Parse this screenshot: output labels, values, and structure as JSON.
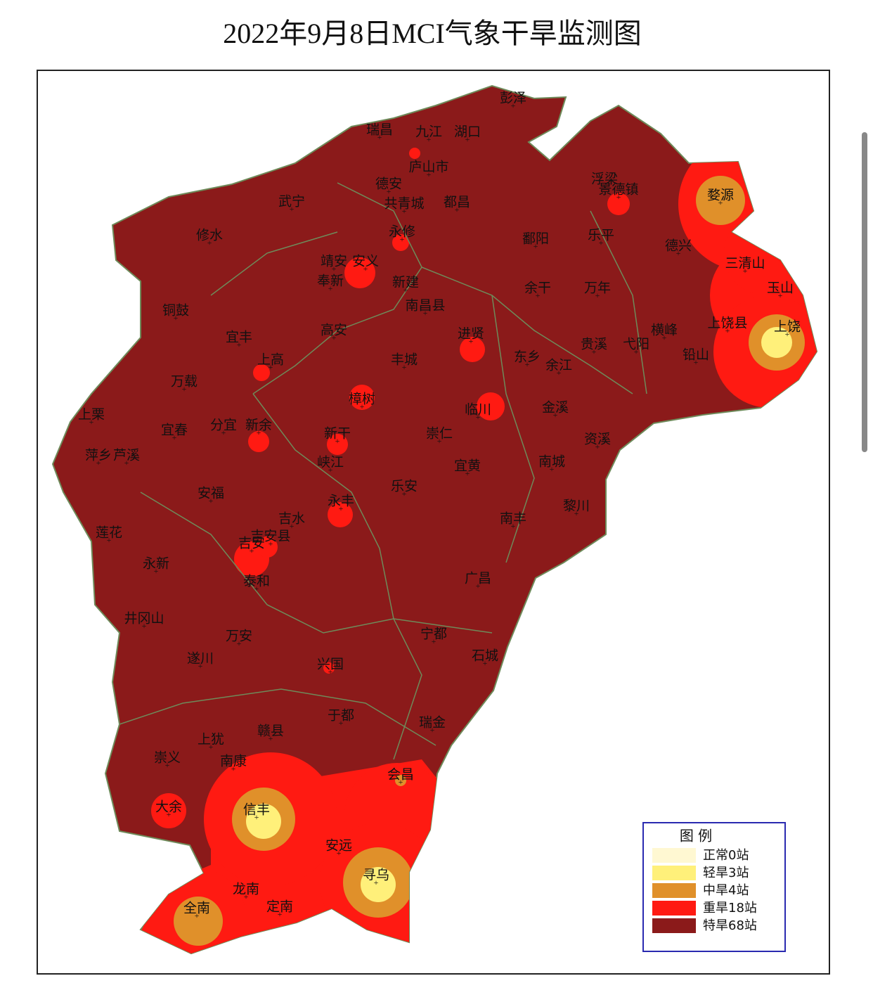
{
  "title": "2022年9月8日MCI气象干旱监测图",
  "legend": {
    "title": "图  例",
    "items": [
      {
        "label": "正常0站",
        "color": "#fff8d2"
      },
      {
        "label": "轻旱3站",
        "color": "#fff07a"
      },
      {
        "label": "中旱4站",
        "color": "#e0902a"
      },
      {
        "label": "重旱18站",
        "color": "#ff1a12"
      },
      {
        "label": "特旱68站",
        "color": "#8b1a1a"
      }
    ]
  },
  "places": [
    "彭泽",
    "瑞昌",
    "九江",
    "湖口",
    "庐山市",
    "德安",
    "共青城",
    "都昌",
    "武宁",
    "修水",
    "永修",
    "浮梁",
    "景德镇",
    "婺源",
    "乐平",
    "鄱阳",
    "德兴",
    "三清山",
    "玉山",
    "靖安",
    "安义",
    "奉新",
    "新建",
    "南昌县",
    "余干",
    "万年",
    "铜鼓",
    "宜丰",
    "高安",
    "进贤",
    "余江",
    "东乡",
    "贵溪",
    "弋阳",
    "横峰",
    "铅山",
    "上饶县",
    "上饶",
    "上高",
    "丰城",
    "万载",
    "樟树",
    "临川",
    "金溪",
    "上栗",
    "宜春",
    "分宜",
    "新余",
    "新干",
    "崇仁",
    "资溪",
    "萍乡",
    "芦溪",
    "峡江",
    "宜黄",
    "南城",
    "安福",
    "乐安",
    "永丰",
    "黎川",
    "南丰",
    "吉水",
    "莲花",
    "吉安",
    "吉安县",
    "永新",
    "泰和",
    "广昌",
    "井冈山",
    "万安",
    "宁都",
    "石城",
    "遂川",
    "兴国",
    "于都",
    "瑞金",
    "赣县",
    "上犹",
    "崇义",
    "南康",
    "会昌",
    "大余",
    "信丰",
    "安远",
    "寻乌",
    "龙南",
    "定南",
    "全南"
  ]
}
